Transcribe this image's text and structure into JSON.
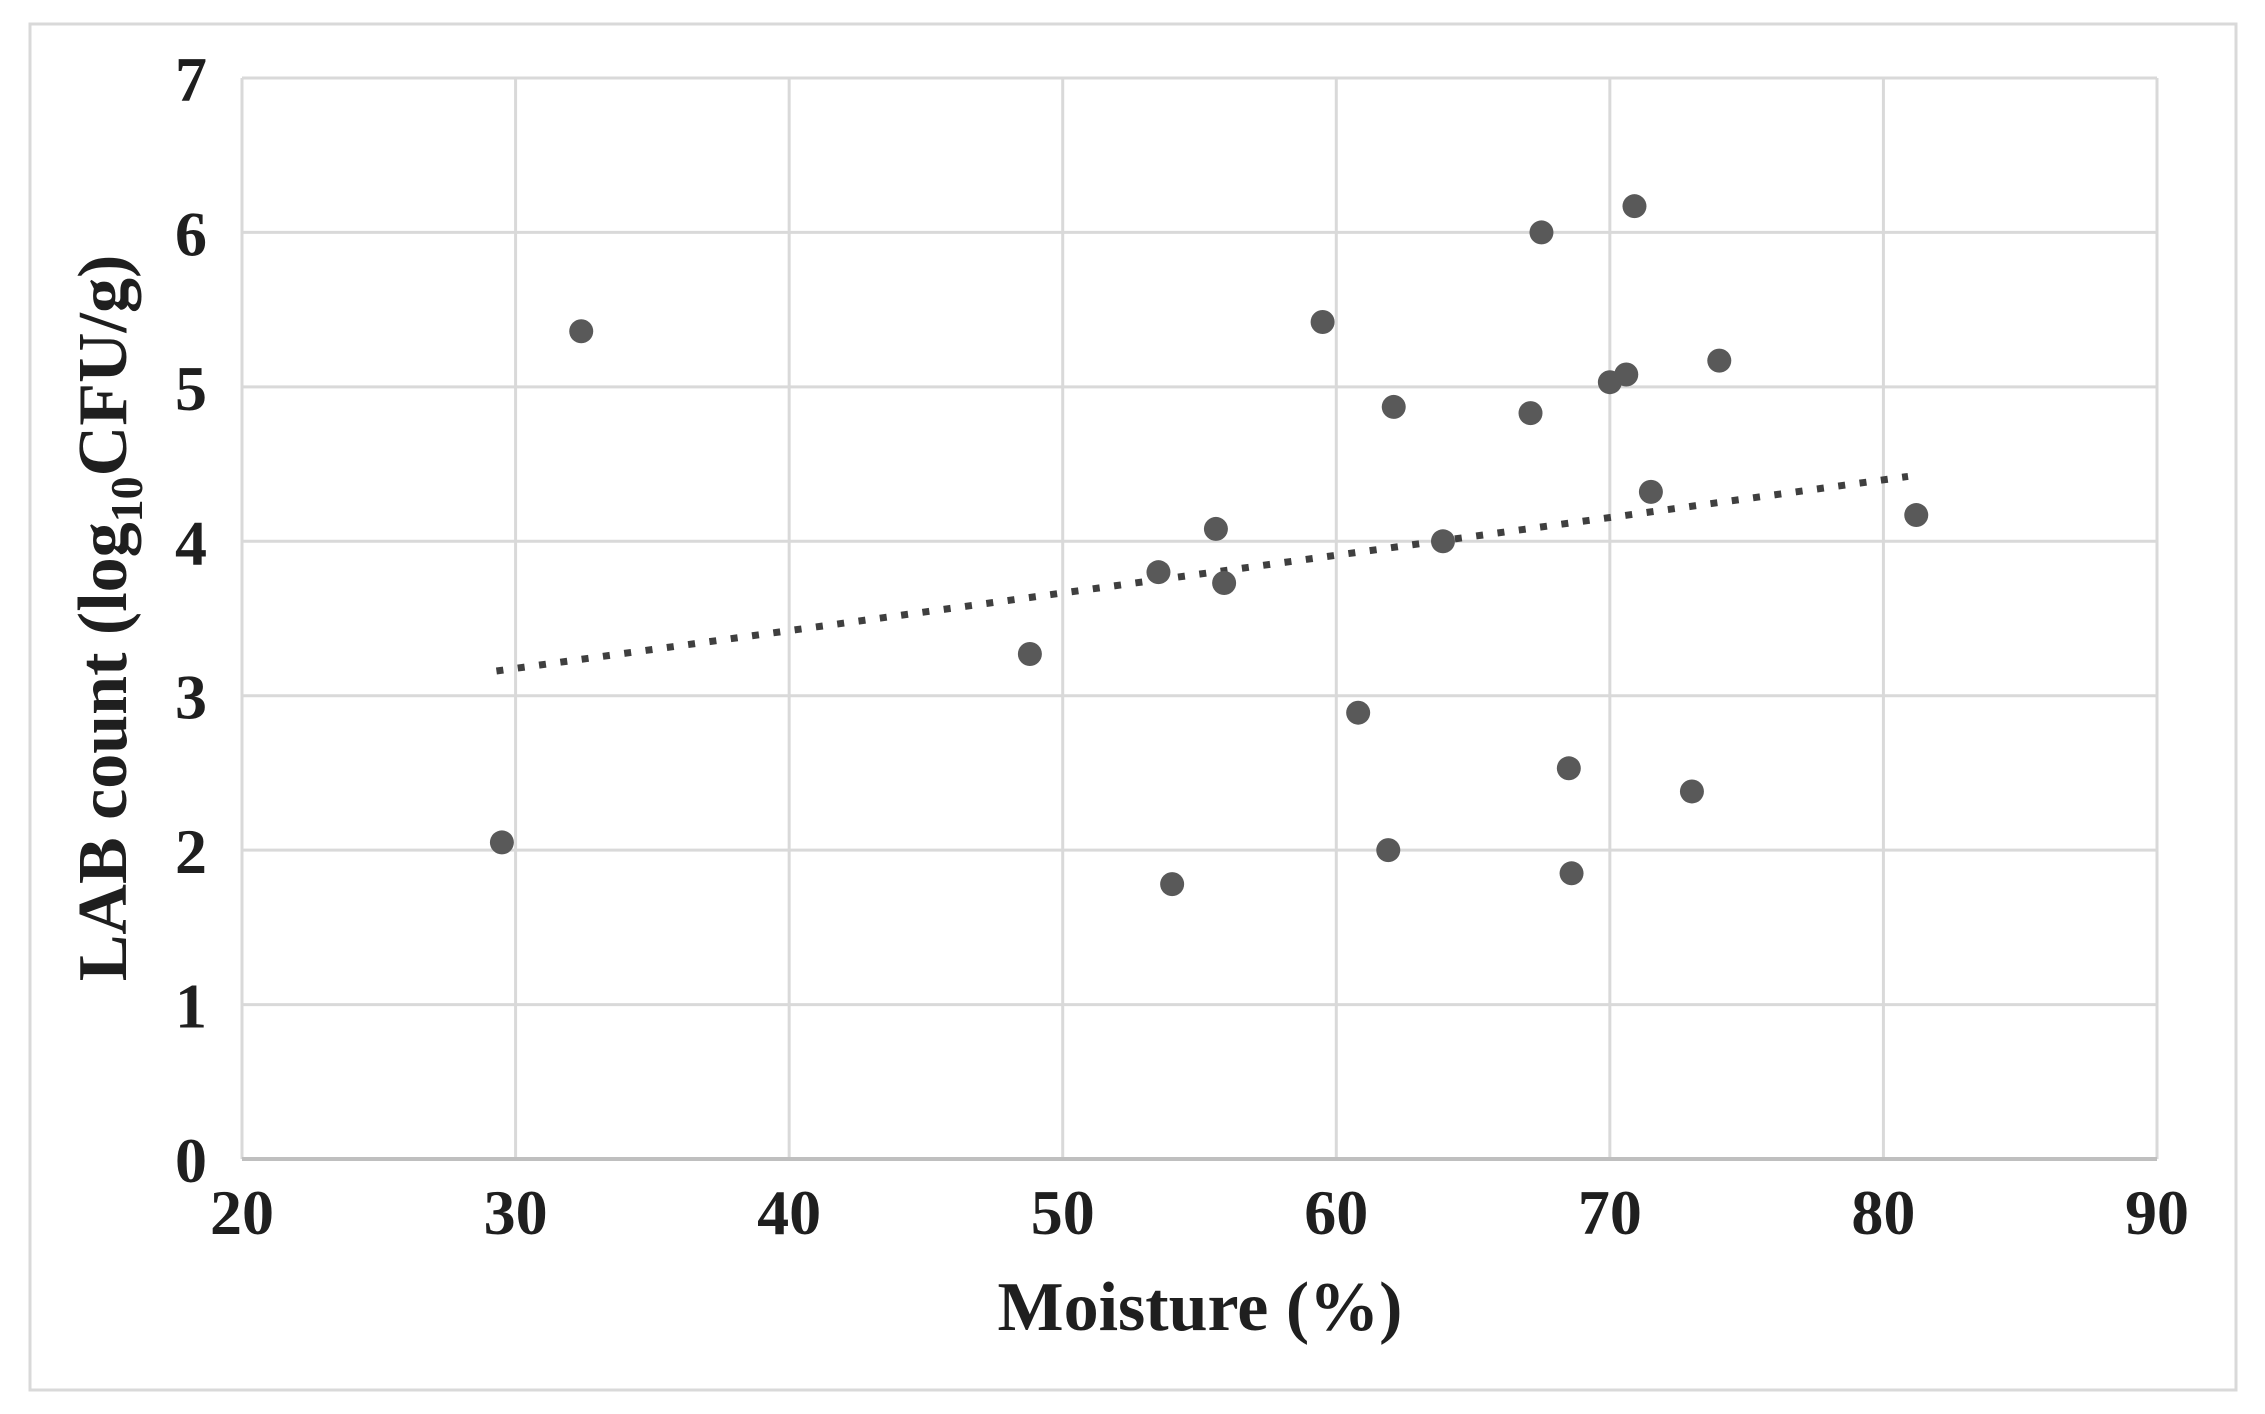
{
  "figure": {
    "background": "#ffffff",
    "border_color": "#d9d9d9"
  },
  "chart_data": {
    "type": "scatter",
    "title": "",
    "xlabel": "Moisture (%)",
    "ylabel": "LAB count (log10CFU/g)",
    "ylabel_parts": {
      "pre": "LAB count (log",
      "sub": "10",
      "post": "CFU/g)"
    },
    "xlim": [
      20,
      90
    ],
    "ylim": [
      0,
      7
    ],
    "x_ticks": [
      20,
      30,
      40,
      50,
      60,
      70,
      80,
      90
    ],
    "y_ticks": [
      0,
      1,
      2,
      3,
      4,
      5,
      6,
      7
    ],
    "grid": true,
    "legend": false,
    "points": [
      [
        29.5,
        2.05
      ],
      [
        32.4,
        5.36
      ],
      [
        48.8,
        3.27
      ],
      [
        53.5,
        3.8
      ],
      [
        54.0,
        1.78
      ],
      [
        55.6,
        4.08
      ],
      [
        55.9,
        3.73
      ],
      [
        59.5,
        5.42
      ],
      [
        60.8,
        2.89
      ],
      [
        61.9,
        2.0
      ],
      [
        62.1,
        4.87
      ],
      [
        63.9,
        4.0
      ],
      [
        67.1,
        4.83
      ],
      [
        67.5,
        6.0
      ],
      [
        68.5,
        2.53
      ],
      [
        68.6,
        1.85
      ],
      [
        70.0,
        5.03
      ],
      [
        70.6,
        5.08
      ],
      [
        70.9,
        6.17
      ],
      [
        71.5,
        4.32
      ],
      [
        73.0,
        2.38
      ],
      [
        74.0,
        5.17
      ],
      [
        81.2,
        4.17
      ]
    ],
    "trendline": {
      "style": "dotted",
      "x1": 29.3,
      "y1": 3.16,
      "x2": 80.9,
      "y2": 4.42
    },
    "colors": {
      "point": "#595959",
      "trend": "#3f3f3f",
      "grid": "#d9d9d9",
      "axis": "#bfbfbf",
      "text": "#1f1f1f"
    }
  }
}
